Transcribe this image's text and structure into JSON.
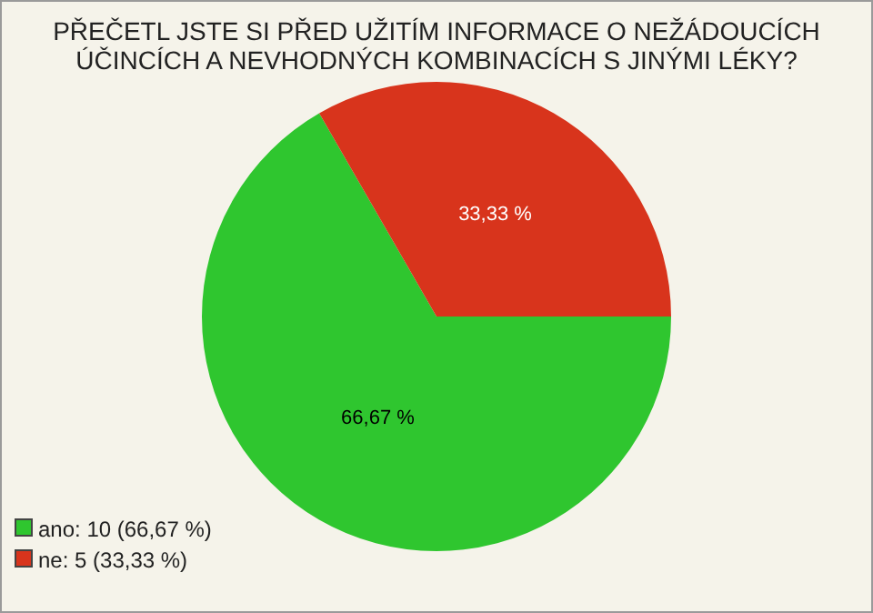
{
  "chart_data": {
    "type": "pie",
    "title": "PŘEČETL JSTE SI PŘED UŽITÍM INFORMACE O NEŽÁDOUCÍCH ÚČINCÍCH A NEVHODNÝCH KOMBINACÍCH S JINÝMI LÉKY?",
    "categories": [
      "ano: 10 (66,67 %)",
      "ne: 5 (33,33 %)"
    ],
    "values": [
      66.67,
      33.33
    ],
    "colors": [
      "#2fc62f",
      "#d8341c"
    ],
    "value_labels": [
      "66,67 %",
      "33,33 %"
    ],
    "legend": "bottom left"
  }
}
